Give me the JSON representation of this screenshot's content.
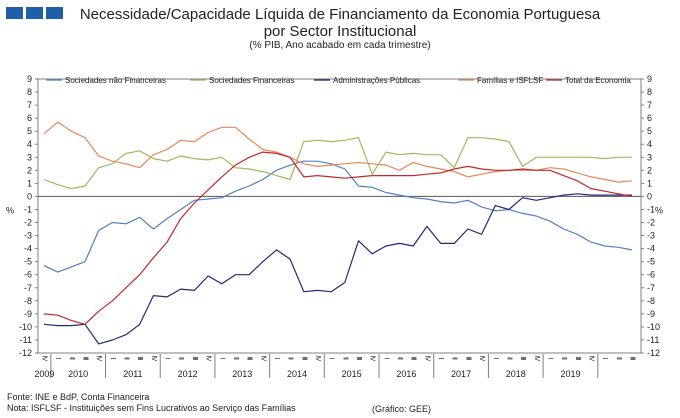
{
  "header": {
    "title_line1": "Necessidade/Capacidade Líquida de Financiamento da Economia Portuguesa",
    "title_line2": "por Sector Institucional",
    "subtitle": "(% PIB, Ano acabado em cada trimestre)"
  },
  "footer": {
    "source": "Fonte: INE e BdP, Conta Financeira",
    "note": "Nota: ISFLSF - Instituições sem Fins Lucrativos ao Serviço das Famílias",
    "graphic": "(Gráfico: GEE)"
  },
  "chart_data": {
    "type": "line",
    "ylabel": "%",
    "ylim": [
      -12,
      9
    ],
    "y_ticks": [
      9,
      8,
      7,
      6,
      5,
      4,
      3,
      2,
      1,
      0,
      -1,
      -2,
      -3,
      -4,
      -5,
      -6,
      -7,
      -8,
      -9,
      -10,
      -11,
      -12
    ],
    "legend_position": "top",
    "quarter_labels": [
      "IV",
      "I",
      "II",
      "III",
      "IV",
      "I",
      "II",
      "III",
      "IV",
      "I",
      "II",
      "III",
      "IV",
      "I",
      "II",
      "III",
      "IV",
      "I",
      "II",
      "III",
      "IV",
      "I",
      "II",
      "III",
      "IV",
      "I",
      "II",
      "III",
      "IV",
      "I",
      "II",
      "III",
      "IV",
      "I",
      "II",
      "III",
      "IV",
      "I",
      "II",
      "III",
      "IV",
      "I",
      "II",
      "III"
    ],
    "years": [
      "2009",
      "2010",
      "2011",
      "2012",
      "2013",
      "2014",
      "2015",
      "2016",
      "2017",
      "2018",
      "2019"
    ],
    "series": [
      {
        "name": "Sociedades não Financeiras",
        "color": "#4f81bd",
        "values": [
          -5.3,
          -5.8,
          -5.4,
          -5.0,
          -2.6,
          -2.0,
          -2.1,
          -1.6,
          -2.5,
          -1.7,
          -1.0,
          -0.3,
          -0.2,
          -0.1,
          0.4,
          0.8,
          1.3,
          2.0,
          2.4,
          2.7,
          2.7,
          2.5,
          2.1,
          0.8,
          0.7,
          0.3,
          0.1,
          -0.1,
          -0.2,
          -0.4,
          -0.5,
          -0.3,
          -0.8,
          -1.1,
          -1.0,
          -1.3,
          -1.5,
          -1.9,
          -2.5,
          -2.9,
          -3.5,
          -3.8,
          -3.9,
          -4.1
        ]
      },
      {
        "name": "Sociedades Financeiras",
        "color": "#9bbb59",
        "values": [
          1.3,
          0.9,
          0.6,
          0.8,
          2.2,
          2.5,
          3.3,
          3.5,
          2.9,
          2.7,
          3.1,
          2.9,
          2.8,
          3.0,
          2.2,
          2.1,
          1.9,
          1.6,
          1.3,
          4.2,
          4.3,
          4.2,
          4.3,
          4.5,
          1.7,
          3.4,
          3.2,
          3.3,
          3.2,
          3.2,
          2.2,
          4.5,
          4.5,
          4.4,
          4.2,
          2.3,
          3.0,
          3.0,
          3.0,
          3.0,
          3.0,
          2.9,
          3.0,
          3.0
        ]
      },
      {
        "name": "Administrações Públicas",
        "color": "#1f2a7a",
        "values": [
          -9.8,
          -9.9,
          -9.9,
          -9.8,
          -11.3,
          -11.0,
          -10.6,
          -9.8,
          -7.6,
          -7.7,
          -7.1,
          -7.2,
          -6.1,
          -6.7,
          -6.0,
          -6.0,
          -5.0,
          -4.1,
          -4.8,
          -7.3,
          -7.2,
          -7.3,
          -6.6,
          -3.4,
          -4.4,
          -3.8,
          -3.6,
          -3.8,
          -2.3,
          -3.6,
          -3.6,
          -2.5,
          -2.9,
          -0.7,
          -1.0,
          -0.1,
          -0.3,
          -0.1,
          0.1,
          0.2,
          0.1,
          0.1,
          0.1,
          0.1
        ]
      },
      {
        "name": "Famílias e ISFLSF",
        "color": "#e8875a",
        "values": [
          4.8,
          5.7,
          5.0,
          4.5,
          3.1,
          2.7,
          2.5,
          2.2,
          3.2,
          3.6,
          4.3,
          4.2,
          4.9,
          5.3,
          5.3,
          4.4,
          3.6,
          3.4,
          3.0,
          2.5,
          2.3,
          2.4,
          2.5,
          2.6,
          2.5,
          2.4,
          2.0,
          2.6,
          2.3,
          2.1,
          1.9,
          1.5,
          1.7,
          1.9,
          2.0,
          2.0,
          2.0,
          2.2,
          2.1,
          1.8,
          1.5,
          1.3,
          1.1,
          1.2
        ]
      },
      {
        "name": "Total da Economia",
        "color": "#c0282c",
        "values": [
          -9.0,
          -9.1,
          -9.5,
          -9.8,
          -8.8,
          -8.0,
          -7.0,
          -6.0,
          -4.7,
          -3.5,
          -1.7,
          -0.5,
          0.5,
          1.5,
          2.4,
          3.0,
          3.4,
          3.3,
          3.0,
          1.5,
          1.6,
          1.5,
          1.4,
          1.5,
          1.6,
          1.6,
          1.6,
          1.6,
          1.7,
          1.8,
          2.1,
          2.3,
          2.1,
          2.0,
          2.0,
          2.1,
          2.0,
          2.0,
          1.6,
          1.2,
          0.6,
          0.4,
          0.2,
          0.0
        ]
      }
    ]
  }
}
